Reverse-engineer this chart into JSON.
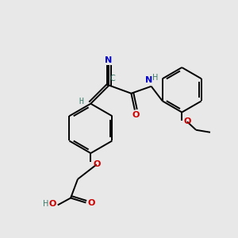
{
  "background_color": "#e8e8e8",
  "bond_color": "#000000",
  "carbon_color": "#3a7a6a",
  "nitrogen_color": "#0000cc",
  "oxygen_color": "#cc0000",
  "hydrogen_color": "#3a7a6a",
  "figsize": [
    3.0,
    3.0
  ],
  "dpi": 100,
  "xlim": [
    0,
    10
  ],
  "ylim": [
    0,
    10
  ]
}
